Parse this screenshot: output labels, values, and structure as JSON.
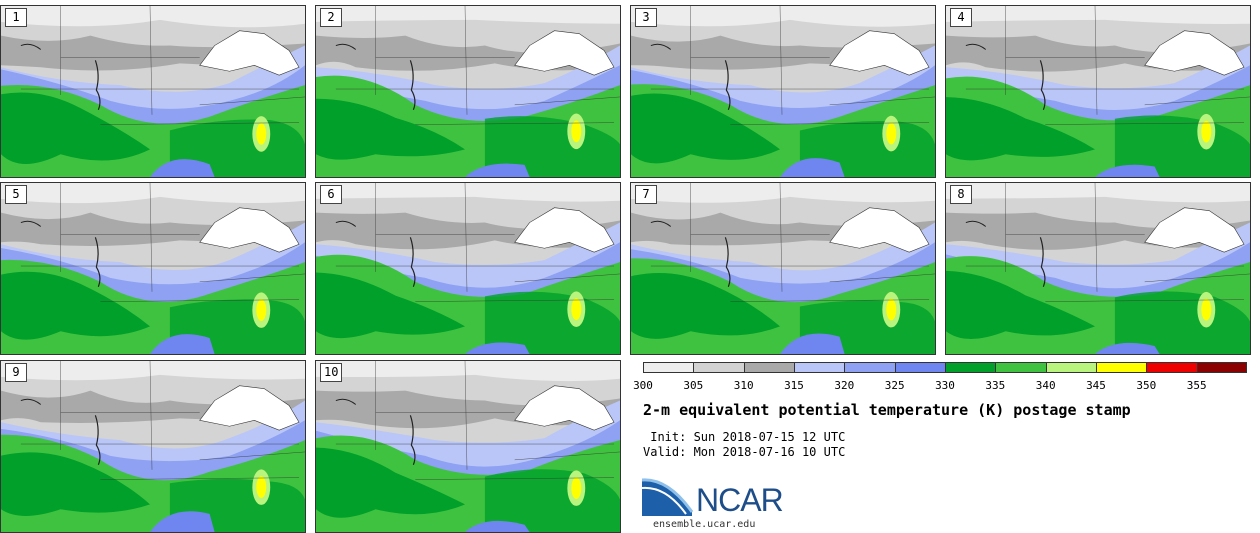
{
  "panels": [
    {
      "label": "1"
    },
    {
      "label": "2"
    },
    {
      "label": "3"
    },
    {
      "label": "4"
    },
    {
      "label": "5"
    },
    {
      "label": "6"
    },
    {
      "label": "7"
    },
    {
      "label": "8"
    },
    {
      "label": "9"
    },
    {
      "label": "10"
    }
  ],
  "colorbar": {
    "ticks": [
      "300",
      "305",
      "310",
      "315",
      "320",
      "325",
      "330",
      "335",
      "340",
      "345",
      "350",
      "355"
    ],
    "colors": [
      "#eeeeee",
      "#d2d2d2",
      "#a9a9a9",
      "#b9c6f7",
      "#8ea1f2",
      "#6f85ef",
      "#00a02a",
      "#3fc23f",
      "#b8f47e",
      "#ffff00",
      "#ee0000",
      "#8b0000"
    ]
  },
  "title": "2-m equivalent potential temperature (K) postage stamp",
  "init": " Init: Sun 2018-07-15 12 UTC",
  "valid": "Valid: Mon 2018-07-16 10 UTC",
  "logo": {
    "wordmark": "NCAR",
    "site": "ensemble.ucar.edu"
  }
}
